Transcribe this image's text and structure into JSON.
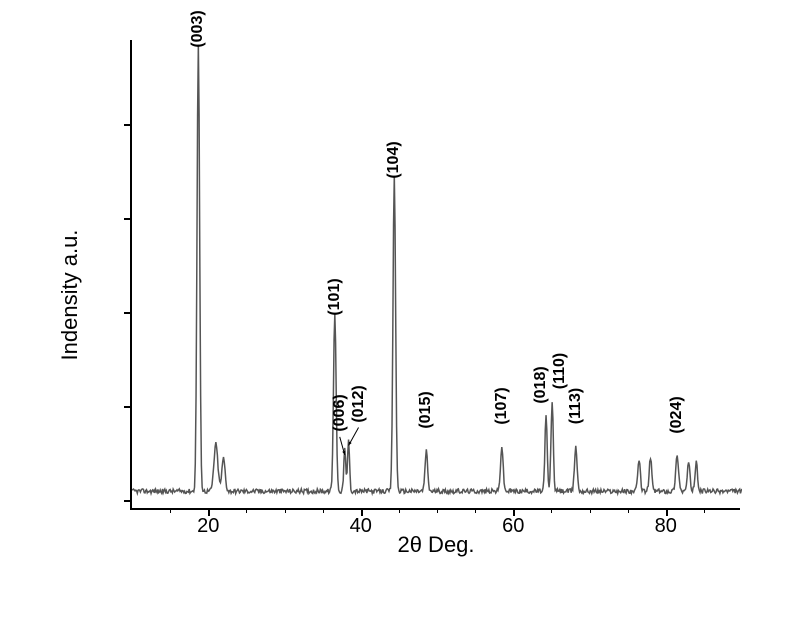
{
  "chart": {
    "type": "xrd-line",
    "xlabel": "2θ Deg.",
    "ylabel": "Indensity a.u.",
    "xlim": [
      10,
      90
    ],
    "xtick_major": [
      20,
      40,
      60,
      80
    ],
    "xtick_minor": [
      15,
      25,
      30,
      35,
      45,
      50,
      55,
      65,
      70,
      75,
      85
    ],
    "ytick_positions_rel": [
      0.02,
      0.22,
      0.42,
      0.62,
      0.82
    ],
    "background_color": "#ffffff",
    "line_color": "#555555",
    "axis_color": "#000000",
    "label_fontsize": 22,
    "tick_fontsize": 20,
    "peak_label_fontsize": 16,
    "baseline_y": 0.04,
    "baseline_noise": 0.01,
    "peaks": [
      {
        "x": 18.7,
        "height": 0.95,
        "width": 0.4,
        "label": "(003)",
        "label_dy": 25
      },
      {
        "x": 21.0,
        "height": 0.1,
        "width": 0.6,
        "label": null
      },
      {
        "x": 22.0,
        "height": 0.07,
        "width": 0.5,
        "label": null
      },
      {
        "x": 36.6,
        "height": 0.38,
        "width": 0.4,
        "label": "(101)",
        "label_dy": 25
      },
      {
        "x": 37.9,
        "height": 0.09,
        "width": 0.3,
        "label": "(006)",
        "label_dy": 45,
        "arrow": true,
        "arrow_dx": -5
      },
      {
        "x": 38.4,
        "height": 0.11,
        "width": 0.3,
        "label": "(012)",
        "label_dy": 45,
        "arrow": true,
        "arrow_dx": 10
      },
      {
        "x": 44.4,
        "height": 0.67,
        "width": 0.4,
        "label": "(104)",
        "label_dy": 25
      },
      {
        "x": 48.6,
        "height": 0.085,
        "width": 0.4,
        "label": "(015)",
        "label_dy": 50
      },
      {
        "x": 58.5,
        "height": 0.095,
        "width": 0.4,
        "label": "(107)",
        "label_dy": 50
      },
      {
        "x": 64.3,
        "height": 0.16,
        "width": 0.35,
        "label": "(018)",
        "label_dy": 40
      },
      {
        "x": 65.1,
        "height": 0.19,
        "width": 0.35,
        "label": "(110)",
        "label_dy": 40
      },
      {
        "x": 68.2,
        "height": 0.095,
        "width": 0.4,
        "label": "(113)",
        "label_dy": 50
      },
      {
        "x": 76.5,
        "height": 0.065,
        "width": 0.4,
        "label": null
      },
      {
        "x": 78.0,
        "height": 0.07,
        "width": 0.4,
        "label": null
      },
      {
        "x": 81.5,
        "height": 0.075,
        "width": 0.45,
        "label": "(024)",
        "label_dy": 50
      },
      {
        "x": 83.0,
        "height": 0.06,
        "width": 0.4,
        "label": null
      },
      {
        "x": 84.0,
        "height": 0.06,
        "width": 0.4,
        "label": null
      }
    ]
  }
}
